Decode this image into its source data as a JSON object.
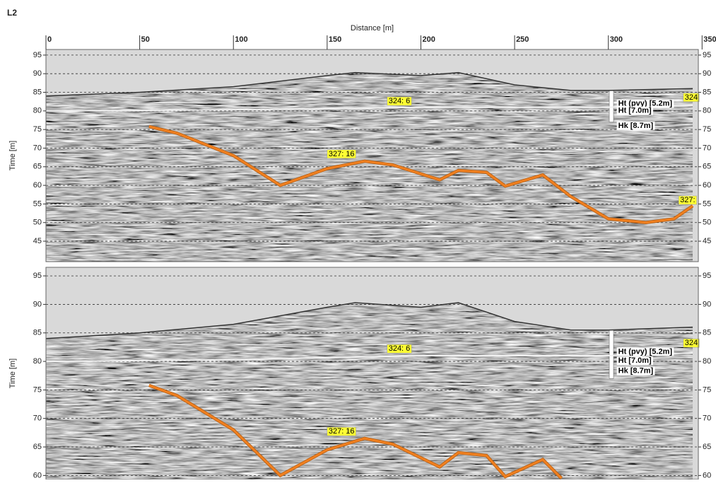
{
  "header": {
    "title": "L2"
  },
  "chart_data": [
    {
      "type": "line",
      "xlabel": "Distance [m]",
      "ylabel": "Time [m]",
      "xlim": [
        0,
        348
      ],
      "xticks": [
        0,
        50,
        100,
        150,
        200,
        250,
        300,
        350
      ],
      "ylim": [
        39.5,
        96.5
      ],
      "yticks": [
        45,
        50,
        55,
        60,
        65,
        70,
        75,
        80,
        85,
        90,
        95
      ],
      "grid": true,
      "lines": [
        {
          "color": "#333333",
          "fill_above": "#d9d9d9",
          "width": 1.5,
          "x": [
            0,
            50,
            100,
            150,
            165,
            200,
            220,
            250,
            280,
            300,
            345
          ],
          "values": [
            84,
            85,
            86.5,
            89.5,
            90.3,
            89.5,
            90.3,
            87,
            85.5,
            85.5,
            86
          ]
        },
        {
          "color": "#f2f2f2",
          "width": 2,
          "x": [
            0,
            100,
            200,
            300,
            345
          ],
          "values": [
            80,
            80.3,
            81,
            81,
            81.5
          ]
        },
        {
          "color": "#f08020",
          "width": 3,
          "x": [
            55,
            70,
            100,
            125,
            150,
            170,
            185,
            210,
            220,
            235,
            245,
            265,
            280,
            300,
            320,
            335,
            345
          ],
          "values": [
            75.8,
            74,
            68,
            60,
            64.5,
            66.5,
            65.5,
            61.5,
            64,
            63.5,
            59.8,
            62.8,
            57,
            51,
            50,
            51,
            54.5
          ]
        }
      ],
      "annotations": [
        {
          "text": "324: 6",
          "x": 182,
          "y": 82.6,
          "background": "#ffff33"
        },
        {
          "text": "327: 16",
          "x": 150,
          "y": 68.4,
          "background": "#ffff33"
        },
        {
          "text": "324",
          "x": 340,
          "y": 83.6,
          "background": "#ffff33"
        },
        {
          "text": "327:",
          "x": 337.5,
          "y": 56,
          "background": "#ffff33"
        },
        {
          "text": "Ht (pvy) [5.2m]",
          "x": 304.5,
          "y": 81.9,
          "background": "#ffffff"
        },
        {
          "text": "Ht [7.0m]",
          "x": 304.5,
          "y": 80,
          "background": "#ffffff"
        },
        {
          "text": "Hk [8.7m]",
          "x": 304.5,
          "y": 76,
          "background": "#ffffff"
        }
      ]
    },
    {
      "type": "line",
      "ylabel": "Time [m]",
      "xlim": [
        0,
        348
      ],
      "ylim": [
        59.3,
        96.5
      ],
      "yticks": [
        60,
        65,
        70,
        75,
        80,
        85,
        90,
        95
      ],
      "grid": true,
      "lines": [
        {
          "color": "#333333",
          "fill_above": "#d9d9d9",
          "width": 1.5,
          "x": [
            0,
            50,
            100,
            150,
            165,
            200,
            220,
            250,
            280,
            300,
            345
          ],
          "values": [
            84,
            85,
            86.5,
            89.5,
            90.3,
            89.5,
            90.3,
            87,
            85.5,
            85.5,
            86
          ]
        },
        {
          "color": "#f2f2f2",
          "width": 2,
          "x": [
            0,
            100,
            200,
            300,
            345
          ],
          "values": [
            80,
            80.3,
            81,
            81,
            81.5
          ]
        },
        {
          "color": "#f08020",
          "width": 3,
          "x": [
            55,
            70,
            100,
            125,
            150,
            170,
            185,
            210,
            220,
            235,
            245,
            265,
            275
          ],
          "values": [
            75.8,
            74,
            68,
            60,
            64.5,
            66.5,
            65.5,
            61.5,
            64,
            63.5,
            59.8,
            62.8,
            59.5
          ]
        }
      ],
      "annotations": [
        {
          "text": "324: 6",
          "x": 182,
          "y": 82.2,
          "background": "#ffff33"
        },
        {
          "text": "327: 16",
          "x": 150,
          "y": 67.7,
          "background": "#ffff33"
        },
        {
          "text": "324",
          "x": 340,
          "y": 83.2,
          "background": "#ffff33"
        },
        {
          "text": "Ht (pvy) [5.2m]",
          "x": 304.5,
          "y": 81.7,
          "background": "#ffffff"
        },
        {
          "text": "Ht [7.0m]",
          "x": 304.5,
          "y": 80.1,
          "background": "#ffffff"
        },
        {
          "text": "Hk [8.7m]",
          "x": 304.5,
          "y": 78.3,
          "background": "#ffffff"
        }
      ]
    }
  ]
}
